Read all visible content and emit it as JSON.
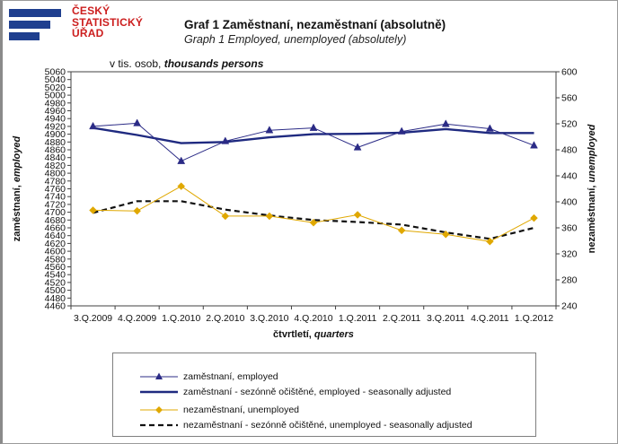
{
  "logo": {
    "lines": [
      "ČESKÝ",
      "STATISTICKÝ",
      "ÚŘAD"
    ],
    "text_color": "#cc1e1e",
    "bar_color": "#1f3f8f"
  },
  "title": {
    "main": "Graf 1  Zaměstnaní, nezaměstnaní (absolutně)",
    "sub": "Graph 1  Employed, unemployed (absolutely)"
  },
  "unit_note": {
    "cz": "v tis. osob,",
    "en": "thousands persons"
  },
  "chart_data": {
    "type": "line",
    "x_label_cz": "čtvrtletí,",
    "x_label_en": "quarters",
    "y_left_label_cz": "zaměstnaní,",
    "y_left_label_en": "employed",
    "y_right_label_cz": "nezaměstnaní,",
    "y_right_label_en": "unemployed",
    "categories": [
      "3.Q.2009",
      "4.Q.2009",
      "1.Q.2010",
      "2.Q.2010",
      "3.Q.2010",
      "4.Q.2010",
      "1.Q.2011",
      "2.Q.2011",
      "3.Q.2011",
      "4.Q.2011",
      "1.Q.2012"
    ],
    "y_left_lim": [
      4460,
      5060
    ],
    "y_left_ticks": [
      4460,
      4480,
      4500,
      4520,
      4540,
      4560,
      4580,
      4600,
      4620,
      4640,
      4660,
      4680,
      4700,
      4720,
      4740,
      4760,
      4780,
      4800,
      4820,
      4840,
      4860,
      4880,
      4900,
      4920,
      4940,
      4960,
      4980,
      5000,
      5020,
      5040,
      5060
    ],
    "y_right_lim": [
      240,
      600
    ],
    "y_right_ticks": [
      240,
      280,
      320,
      360,
      400,
      440,
      480,
      520,
      560,
      600
    ],
    "grid": false,
    "legend_position": "bottom",
    "series": [
      {
        "name": "zaměstnaní, employed",
        "axis": "left",
        "color": "#2b2b86",
        "style": "solid-thin",
        "marker": "triangle",
        "values": [
          4920,
          4928,
          4831,
          4882,
          4910,
          4916,
          4866,
          4907,
          4926,
          4914,
          4871
        ]
      },
      {
        "name": "zaměstnaní - sezónně očištěné, employed - seasonally adjusted",
        "axis": "left",
        "color": "#1f2a80",
        "style": "solid-thick",
        "marker": "none",
        "values": [
          4916,
          4898,
          4877,
          4880,
          4892,
          4900,
          4901,
          4904,
          4913,
          4903,
          4903
        ]
      },
      {
        "name": "nezaměstnaní,  unemployed",
        "axis": "right",
        "color": "#e0a800",
        "style": "solid-thin",
        "marker": "diamond",
        "values": [
          387,
          386,
          424,
          378,
          378,
          368,
          380,
          356,
          350,
          339,
          375
        ]
      },
      {
        "name": "nezaměstnaní - sezónně očištěné,  unemployed - seasonally adjusted",
        "axis": "right",
        "color": "#111111",
        "style": "dashed-thick",
        "marker": "none",
        "values": [
          383,
          401,
          401,
          388,
          379,
          372,
          369,
          365,
          353,
          343,
          360
        ]
      }
    ]
  }
}
